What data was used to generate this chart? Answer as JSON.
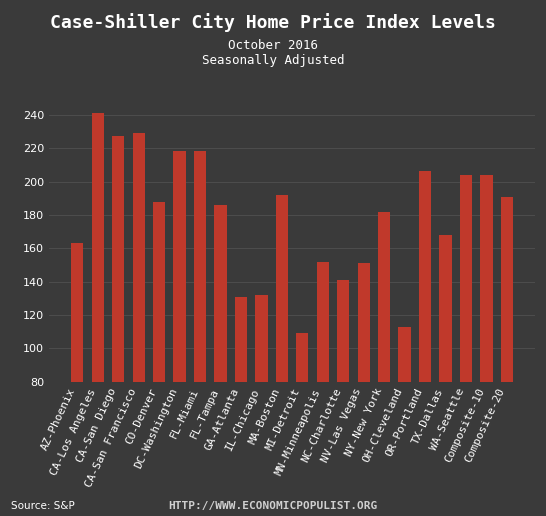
{
  "title": "Case-Shiller City Home Price Index Levels",
  "subtitle1": "October 2016",
  "subtitle2": "Seasonally Adjusted",
  "source_text": "Source: S&P",
  "url_text": "HTTP://WWW.ECONOMICPOPULIST.ORG",
  "categories": [
    "AZ-Phoenix",
    "CA-Los Angeles",
    "CA-San Diego",
    "CA-San Francisco",
    "CO-Denver",
    "DC-Washington",
    "FL-Miami",
    "FL-Tampa",
    "GA-Atlanta",
    "IL-Chicago",
    "MA-Boston",
    "MI-Detroit",
    "MN-Minneapolis",
    "NC-Charlotte",
    "NV-Las Vegas",
    "NY-New York",
    "OH-Cleveland",
    "OR-Portland",
    "TX-Dallas",
    "WA-Seattle",
    "Composite-10",
    "Composite-20"
  ],
  "values": [
    163,
    241,
    227,
    229,
    188,
    218,
    218,
    186,
    131,
    132,
    192,
    109,
    152,
    141,
    151,
    182,
    113,
    206,
    168,
    204,
    204,
    191
  ],
  "bar_color": "#c0392b",
  "background_color": "#3a3a3a",
  "text_color": "#ffffff",
  "grid_color": "#555555",
  "ylim": [
    80,
    250
  ],
  "yticks": [
    80,
    100,
    120,
    140,
    160,
    180,
    200,
    220,
    240
  ],
  "title_fontsize": 13,
  "subtitle_fontsize": 9,
  "tick_fontsize": 8,
  "source_fontsize": 7.5,
  "url_fontsize": 8
}
